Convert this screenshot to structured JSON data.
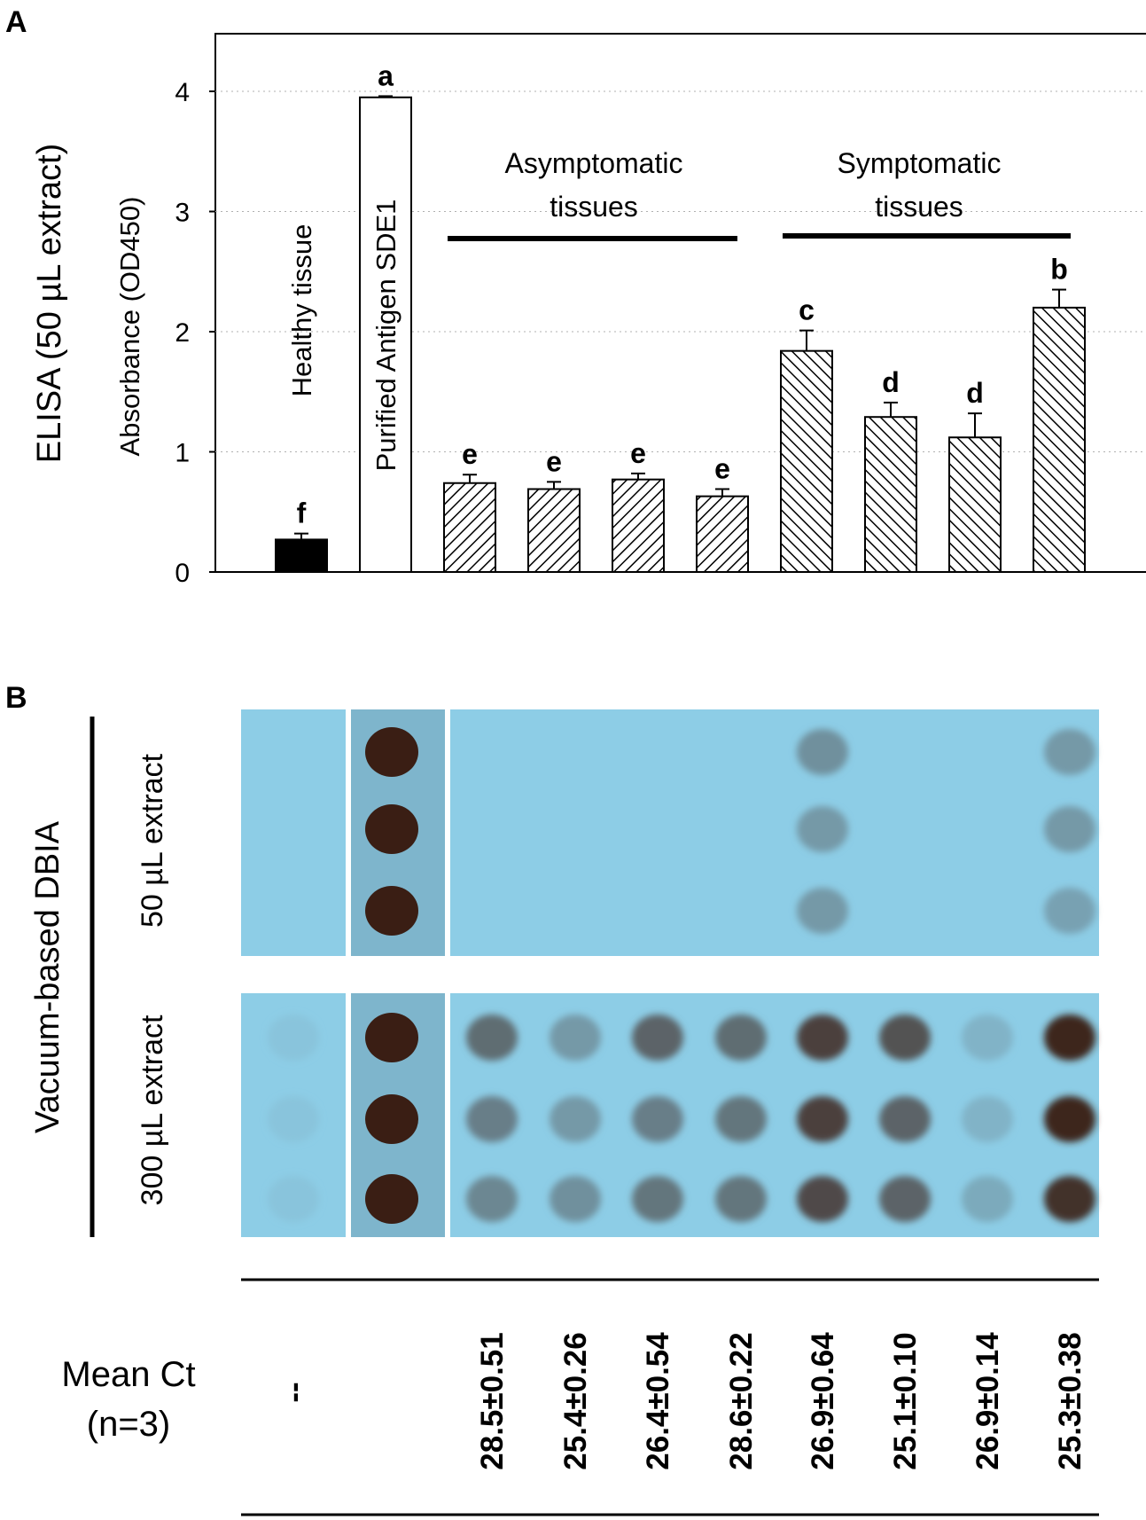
{
  "panel_a": {
    "label": "A",
    "ylabel_outer": "ELISA (50 µL extract)",
    "ylabel_inner": "Absorbance (OD450)",
    "group_labels": [
      {
        "line1": "Asymptomatic",
        "line2": "tissues"
      },
      {
        "line1": "Symptomatic",
        "line2": "tissues"
      }
    ]
  },
  "chart_data": {
    "type": "bar",
    "ylim": [
      0,
      4.5
    ],
    "yticks": [
      "0",
      "1",
      "2",
      "3",
      "4"
    ],
    "grid": true,
    "legend": "none",
    "bars": [
      {
        "label": "Healthy tissue",
        "value": 0.27,
        "error": 0.05,
        "letter": "f",
        "fill": "solid"
      },
      {
        "label": "Purified Antigen SDE1",
        "value": 3.95,
        "error": 0.01,
        "letter": "a",
        "fill": "empty"
      },
      {
        "label": "",
        "value": 0.74,
        "error": 0.07,
        "letter": "e",
        "fill": "hatch-back"
      },
      {
        "label": "",
        "value": 0.69,
        "error": 0.06,
        "letter": "e",
        "fill": "hatch-back"
      },
      {
        "label": "",
        "value": 0.77,
        "error": 0.05,
        "letter": "e",
        "fill": "hatch-back"
      },
      {
        "label": "",
        "value": 0.63,
        "error": 0.06,
        "letter": "e",
        "fill": "hatch-back"
      },
      {
        "label": "",
        "value": 1.84,
        "error": 0.17,
        "letter": "c",
        "fill": "hatch-fwd"
      },
      {
        "label": "",
        "value": 1.29,
        "error": 0.12,
        "letter": "d",
        "fill": "hatch-fwd"
      },
      {
        "label": "",
        "value": 1.12,
        "error": 0.2,
        "letter": "d",
        "fill": "hatch-fwd"
      },
      {
        "label": "",
        "value": 2.2,
        "error": 0.15,
        "letter": "b",
        "fill": "hatch-fwd"
      }
    ]
  },
  "panel_b": {
    "label": "B",
    "vertical_label": "Vacuum-based DBIA",
    "row_labels": [
      "50 µL extract",
      "300 µL extract"
    ],
    "mean_ct_label": [
      "Mean Ct",
      "(n=3)"
    ],
    "mean_ct": [
      "--",
      "28.5±0.51",
      "25.4±0.26",
      "26.4±0.54",
      "28.6±0.22",
      "26.9±0.64",
      "25.1±0.10",
      "26.9±0.14",
      "25.3±0.38"
    ],
    "blot_colors": {
      "membrane": "#8dcde6",
      "membrane_dark": "#7eb5cc",
      "spot": "#3a1e14"
    },
    "spot_intensity_50ul": [
      [
        0,
        0,
        0
      ],
      [
        1,
        1,
        1
      ],
      [
        0,
        0,
        0
      ],
      [
        0,
        0,
        0
      ],
      [
        0,
        0,
        0
      ],
      [
        0,
        0,
        0
      ],
      [
        0.35,
        0.3,
        0.3
      ],
      [
        0,
        0,
        0
      ],
      [
        0,
        0,
        0
      ],
      [
        0.3,
        0.3,
        0.25
      ]
    ],
    "spot_intensity_300ul": [
      [
        0.05,
        0.05,
        0.05
      ],
      [
        1,
        1,
        1
      ],
      [
        0.55,
        0.45,
        0.4
      ],
      [
        0.3,
        0.3,
        0.35
      ],
      [
        0.6,
        0.45,
        0.5
      ],
      [
        0.55,
        0.5,
        0.5
      ],
      [
        0.8,
        0.8,
        0.75
      ],
      [
        0.7,
        0.6,
        0.6
      ],
      [
        0.15,
        0.15,
        0.2
      ],
      [
        0.95,
        0.95,
        0.9
      ]
    ]
  }
}
